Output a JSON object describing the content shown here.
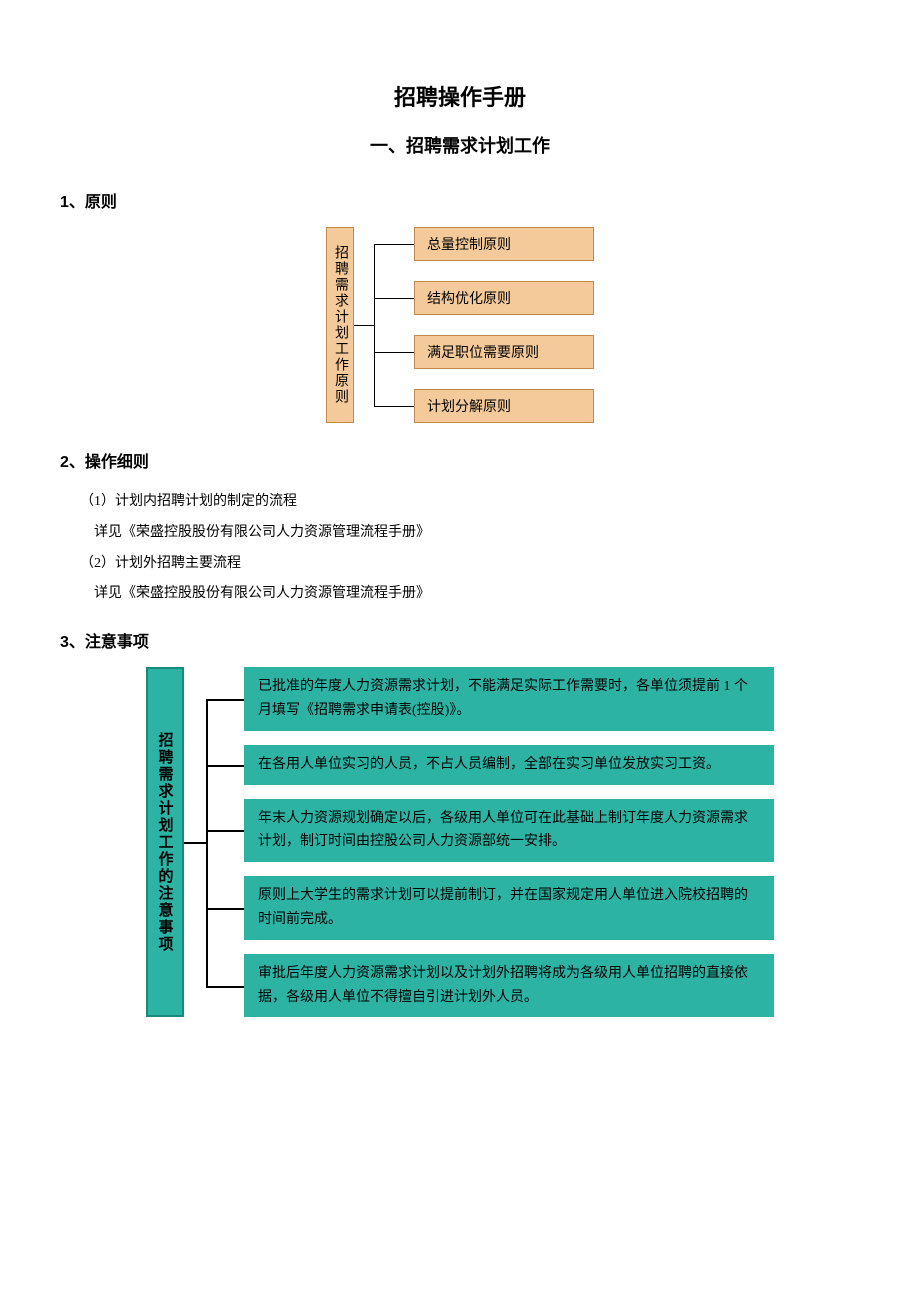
{
  "doc": {
    "title": "招聘操作手册",
    "section_title": "一、招聘需求计划工作"
  },
  "heading1": "1、原则",
  "diagram1": {
    "root_label": "招聘需求计划工作原则",
    "items": [
      "总量控制原则",
      "结构优化原则",
      "满足职位需要原则",
      "计划分解原则"
    ],
    "root_bg": "#f5ca9a",
    "root_border": "#c28a4a",
    "item_bg": "#f5ca9a",
    "item_border": "#c28a4a",
    "item_width": 180,
    "item_height": 34,
    "gap": 20,
    "connector_width": 60
  },
  "heading2": "2、操作细则",
  "body2": {
    "line1": "（1）计划内招聘计划的制定的流程",
    "line2": "详见《荣盛控股股份有限公司人力资源管理流程手册》",
    "line3": "（2）计划外招聘主要流程",
    "line4": "详见《荣盛控股股份有限公司人力资源管理流程手册》"
  },
  "heading3": "3、注意事项",
  "diagram2": {
    "root_label": "招聘需求计划工作的注意事项",
    "items": [
      "已批准的年度人力资源需求计划，不能满足实际工作需要时，各单位须提前 1 个月填写《招聘需求申请表(控股)》。",
      "在各用人单位实习的人员，不占人员编制，全部在实习单位发放实习工资。",
      "年末人力资源规划确定以后，各级用人单位可在此基础上制订年度人力资源需求计划，制订时间由控股公司人力资源部统一安排。",
      "原则上大学生的需求计划可以提前制订，并在国家规定用人单位进入院校招聘的时间前完成。",
      "审批后年度人力资源需求计划以及计划外招聘将成为各级用人单位招聘的直接依据，各级用人单位不得擅自引进计划外人员。"
    ],
    "root_bg": "#2db3a4",
    "root_border": "#178a7e",
    "item_bg": "#2db3a4",
    "item_width": 530,
    "connector_width": 60
  },
  "colors": {
    "page_bg": "#ffffff",
    "text": "#000000",
    "line": "#000000"
  }
}
